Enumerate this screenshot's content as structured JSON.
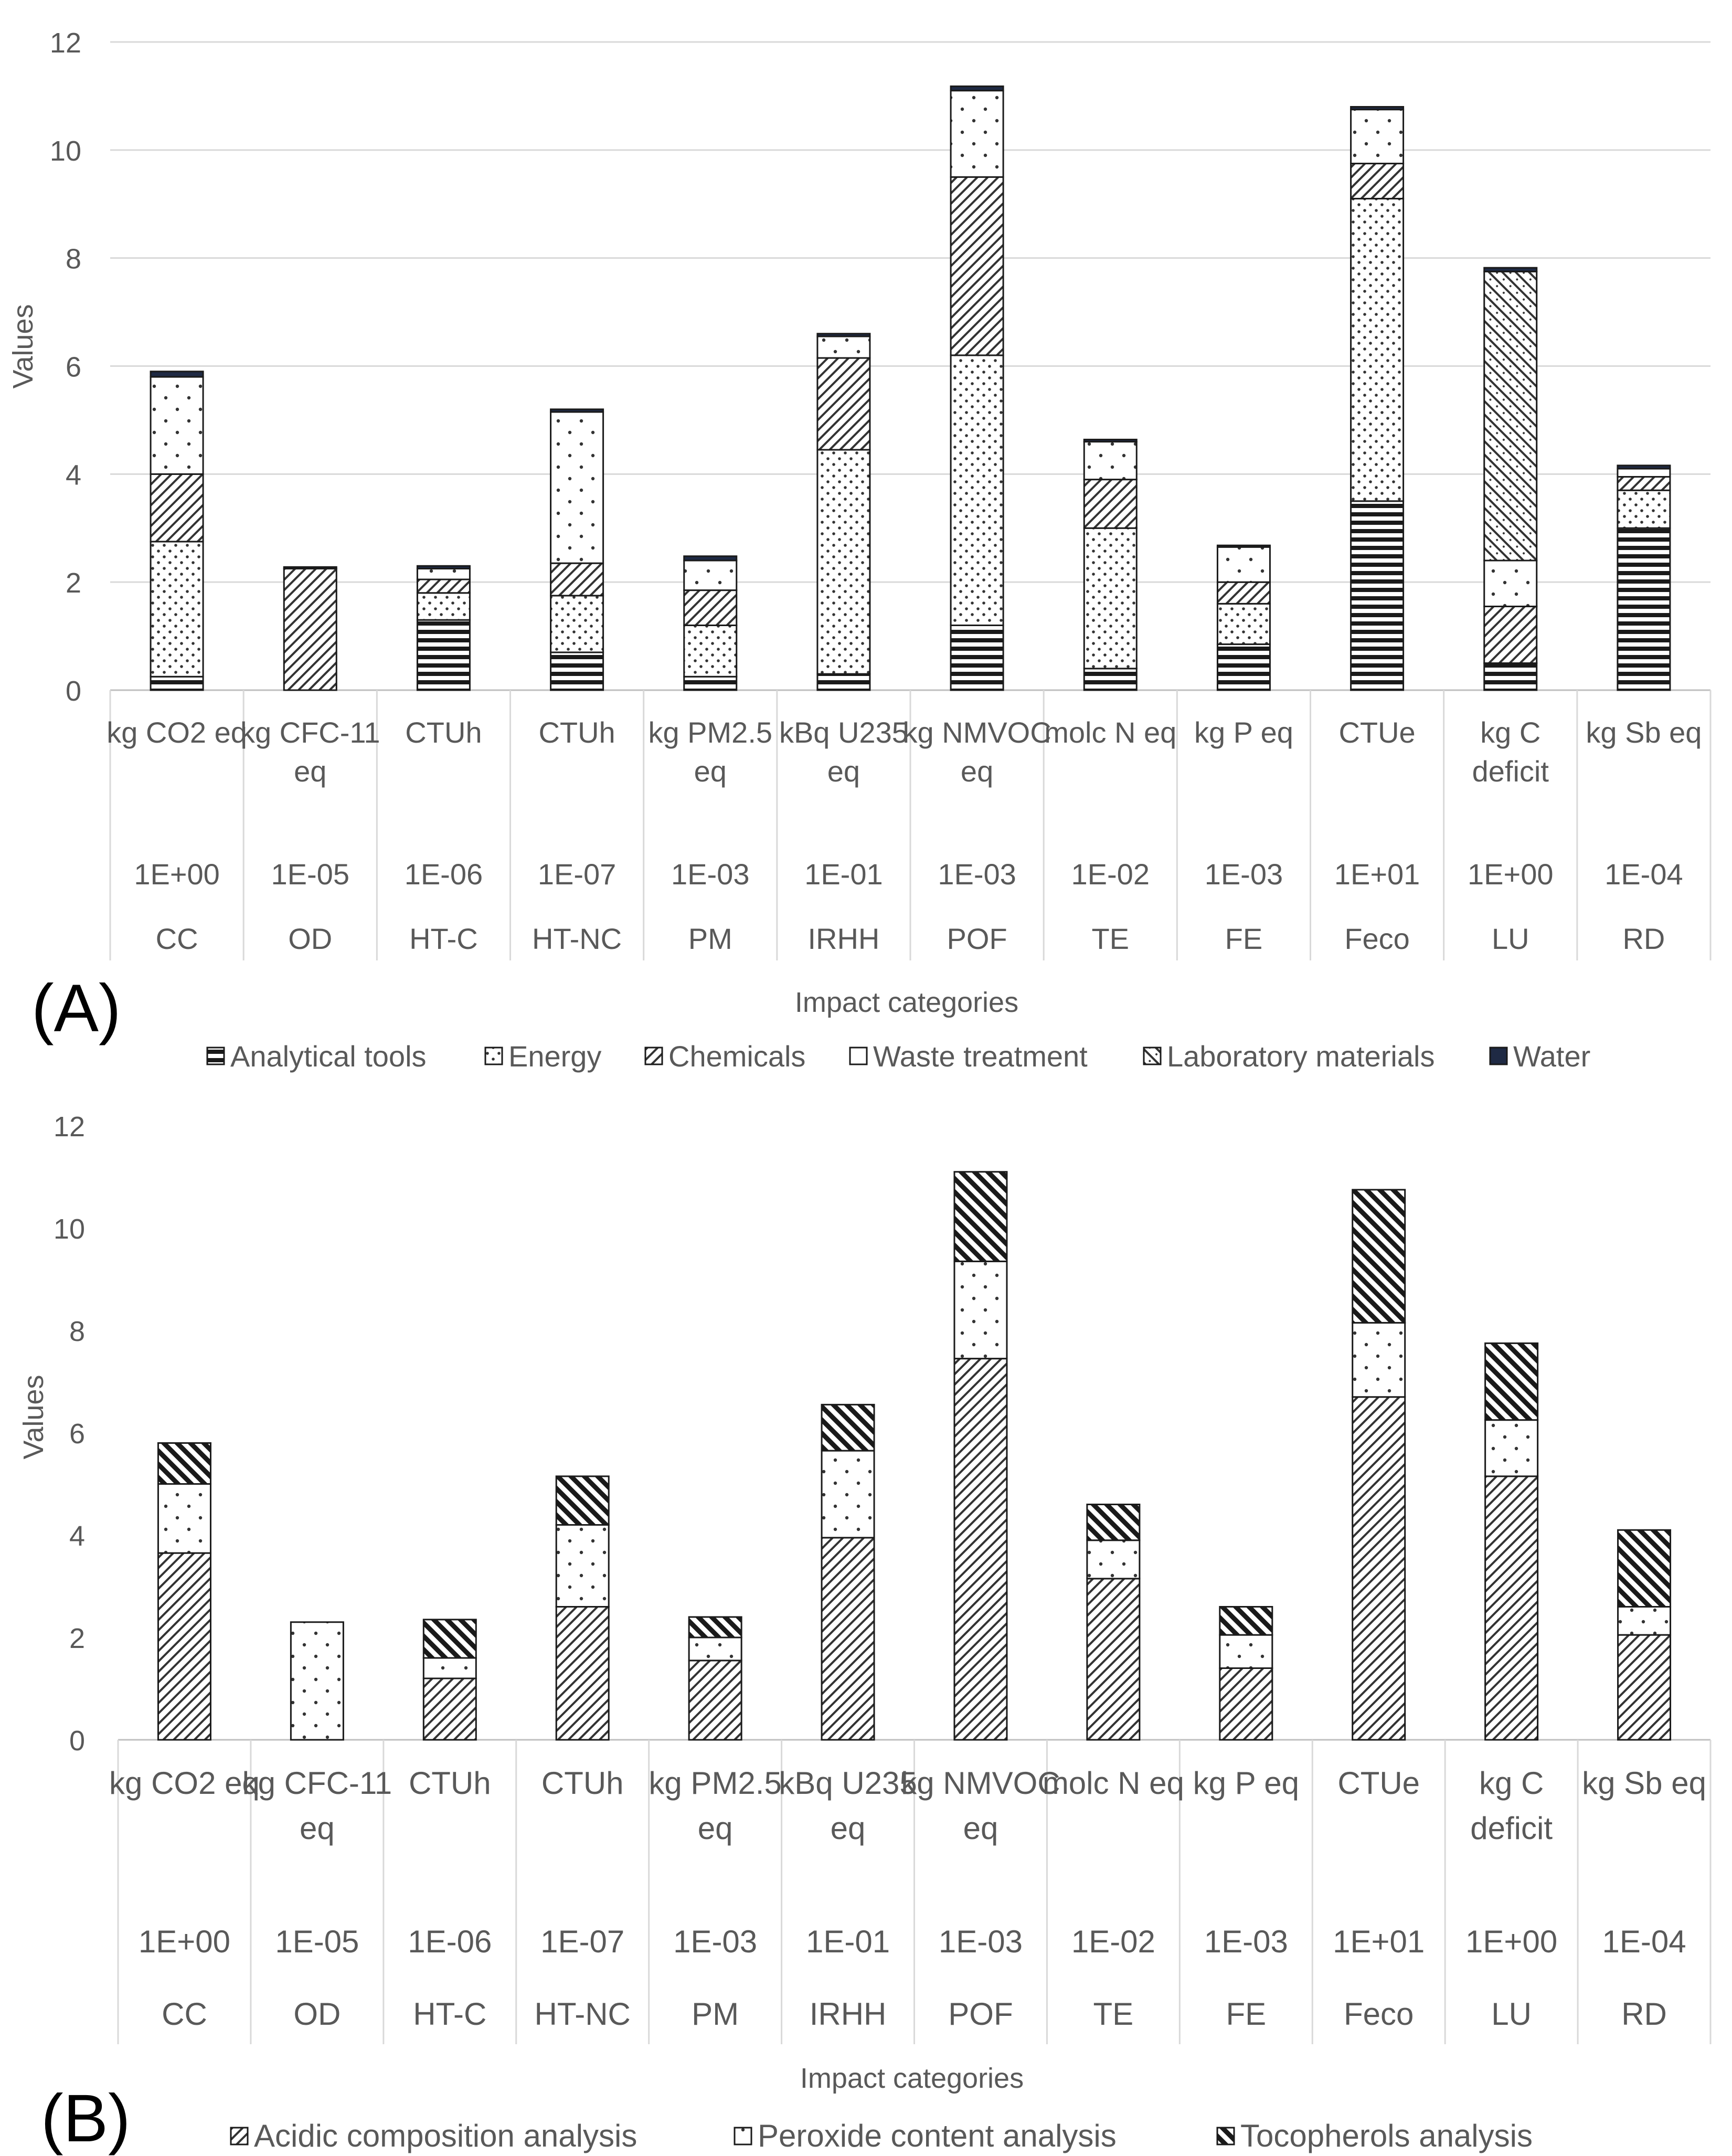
{
  "chart_data": [
    {
      "id": "A",
      "type": "bar",
      "stacked": true,
      "panel_label": "(A)",
      "ylabel": "Values",
      "xlabel": "Impact categories",
      "ylim": [
        0,
        12
      ],
      "yticks": [
        0,
        2,
        4,
        6,
        8,
        10,
        12
      ],
      "grid": true,
      "legend_position": "bottom",
      "categories": [
        {
          "unit": "kg CO2 eq",
          "scale": "1E+00",
          "code": "CC"
        },
        {
          "unit": "kg CFC-11 eq",
          "scale": "1E-05",
          "code": "OD"
        },
        {
          "unit": "CTUh",
          "scale": "1E-06",
          "code": "HT-C"
        },
        {
          "unit": "CTUh",
          "scale": "1E-07",
          "code": "HT-NC"
        },
        {
          "unit": "kg PM2.5 eq",
          "scale": "1E-03",
          "code": "PM"
        },
        {
          "unit": "kBq U235 eq",
          "scale": "1E-01",
          "code": "IRHH"
        },
        {
          "unit": "kg NMVOC eq",
          "scale": "1E-03",
          "code": "POF"
        },
        {
          "unit": "molc N eq",
          "scale": "1E-02",
          "code": "TE"
        },
        {
          "unit": "kg P eq",
          "scale": "1E-03",
          "code": "FE"
        },
        {
          "unit": "CTUe",
          "scale": "1E+01",
          "code": "Feco"
        },
        {
          "unit": "kg C deficit",
          "scale": "1E+00",
          "code": "LU"
        },
        {
          "unit": "kg Sb eq",
          "scale": "1E-04",
          "code": "RD"
        }
      ],
      "series": [
        {
          "name": "Analytical tools",
          "pattern": "hlines",
          "values": [
            0.25,
            0.0,
            1.3,
            0.7,
            0.25,
            0.3,
            1.2,
            0.4,
            0.85,
            3.5,
            0.5,
            3.0
          ]
        },
        {
          "name": "Energy",
          "pattern": "dots",
          "values": [
            2.5,
            0.0,
            0.5,
            1.05,
            0.95,
            4.15,
            5.0,
            2.6,
            0.75,
            5.6,
            0.0,
            0.7
          ]
        },
        {
          "name": "Chemicals",
          "pattern": "diag",
          "values": [
            1.25,
            2.25,
            0.25,
            0.6,
            0.65,
            1.7,
            3.3,
            0.9,
            0.4,
            0.65,
            1.05,
            0.25
          ]
        },
        {
          "name": "Waste treatment",
          "pattern": "sparsedots",
          "values": [
            1.8,
            0.0,
            0.2,
            2.8,
            0.55,
            0.4,
            1.6,
            0.7,
            0.65,
            1.0,
            0.85,
            0.15
          ]
        },
        {
          "name": "Laboratory materials",
          "pattern": "diagdots",
          "values": [
            0.0,
            0.0,
            0.0,
            0.0,
            0.0,
            0.0,
            0.0,
            0.0,
            0.0,
            0.0,
            5.35,
            0.0
          ]
        },
        {
          "name": "Water",
          "pattern": "solid",
          "values": [
            0.1,
            0.03,
            0.05,
            0.05,
            0.08,
            0.05,
            0.08,
            0.04,
            0.03,
            0.05,
            0.07,
            0.06
          ]
        }
      ]
    },
    {
      "id": "B",
      "type": "bar",
      "stacked": true,
      "panel_label": "(B)",
      "ylabel": "Values",
      "xlabel": "Impact categories",
      "ylim": [
        0,
        12
      ],
      "yticks": [
        0,
        2,
        4,
        6,
        8,
        10,
        12
      ],
      "grid": false,
      "legend_position": "bottom",
      "categories": [
        {
          "unit": "kg CO2 eq",
          "scale": "1E+00",
          "code": "CC"
        },
        {
          "unit": "kg CFC-11 eq",
          "scale": "1E-05",
          "code": "OD"
        },
        {
          "unit": "CTUh",
          "scale": "1E-06",
          "code": "HT-C"
        },
        {
          "unit": "CTUh",
          "scale": "1E-07",
          "code": "HT-NC"
        },
        {
          "unit": "kg PM2.5 eq",
          "scale": "1E-03",
          "code": "PM"
        },
        {
          "unit": "kBq U235 eq",
          "scale": "1E-01",
          "code": "IRHH"
        },
        {
          "unit": "kg NMVOC eq",
          "scale": "1E-03",
          "code": "POF"
        },
        {
          "unit": "molc N eq",
          "scale": "1E-02",
          "code": "TE"
        },
        {
          "unit": "kg P eq",
          "scale": "1E-03",
          "code": "FE"
        },
        {
          "unit": "CTUe",
          "scale": "1E+01",
          "code": "Feco"
        },
        {
          "unit": "kg C deficit",
          "scale": "1E+00",
          "code": "LU"
        },
        {
          "unit": "kg Sb eq",
          "scale": "1E-04",
          "code": "RD"
        }
      ],
      "series": [
        {
          "name": "Acidic composition analysis",
          "pattern": "diag",
          "values": [
            3.65,
            0.0,
            1.2,
            2.6,
            1.55,
            3.95,
            7.45,
            3.15,
            1.4,
            6.7,
            5.15,
            2.05
          ]
        },
        {
          "name": "Peroxide content analysis",
          "pattern": "sparsedots",
          "values": [
            1.35,
            2.3,
            0.4,
            1.6,
            0.45,
            1.7,
            1.9,
            0.75,
            0.65,
            1.45,
            1.1,
            0.55
          ]
        },
        {
          "name": "Tocopherols analysis",
          "pattern": "heavydiag",
          "values": [
            0.8,
            0.0,
            0.75,
            0.95,
            0.4,
            0.9,
            1.75,
            0.7,
            0.55,
            2.6,
            1.5,
            1.5
          ]
        }
      ]
    }
  ]
}
